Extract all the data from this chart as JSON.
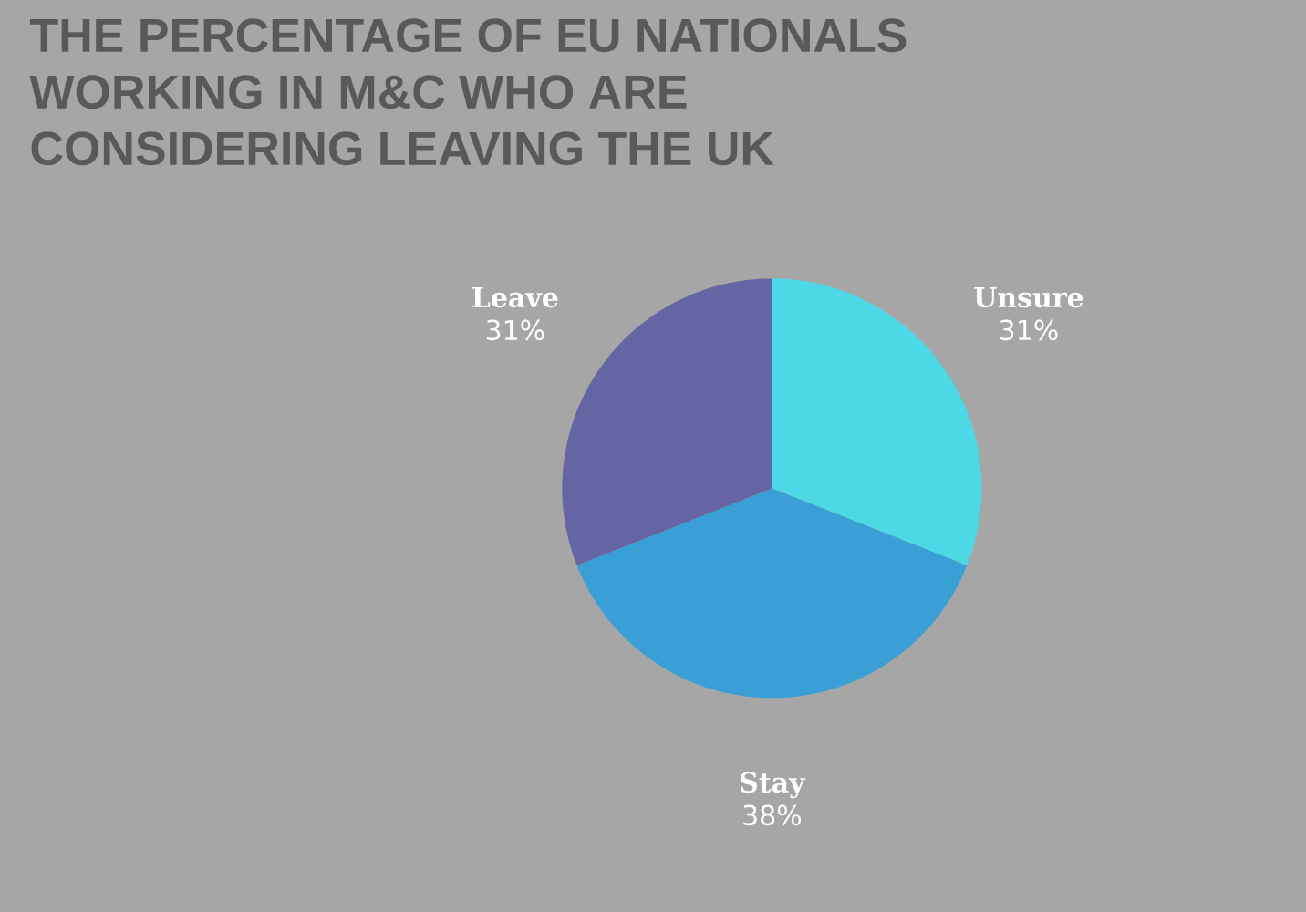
{
  "chart_data": {
    "type": "pie",
    "title": "THE PERCENTAGE OF EU NATIONALS WORKING IN M&C WHO ARE CONSIDERING LEAVING THE UK",
    "categories": [
      "Unsure",
      "Stay",
      "Leave"
    ],
    "values": [
      31,
      38,
      31
    ],
    "colors": [
      "#4dd8e6",
      "#3a9fd5",
      "#6565a3"
    ],
    "value_labels": [
      "31%",
      "38%",
      "31%"
    ]
  }
}
